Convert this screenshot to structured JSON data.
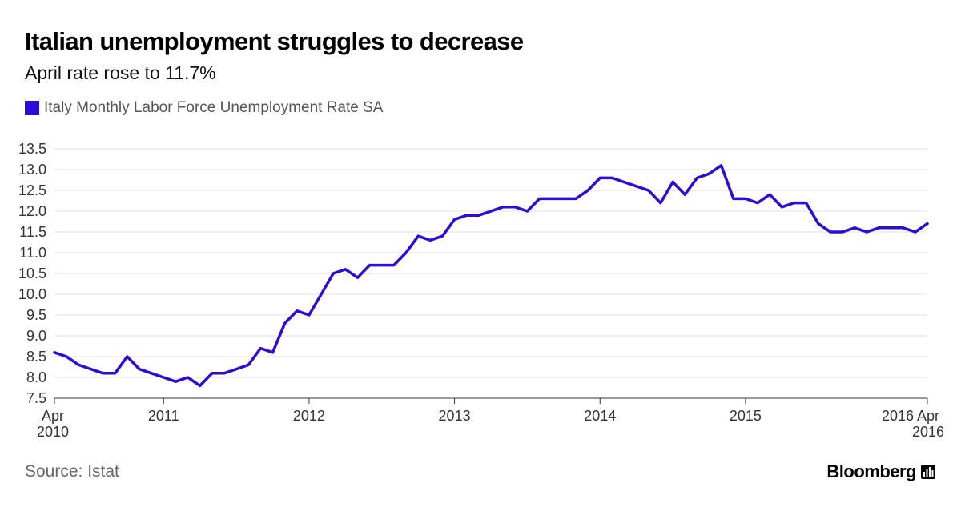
{
  "header": {
    "title": "Italian unemployment struggles to decrease",
    "subtitle": "April rate rose to 11.7%"
  },
  "footer": {
    "source": "Source: Istat",
    "brand": "Bloomberg",
    "brand_icon": "bar-chart-icon"
  },
  "colors": {
    "series": "#2d0cd8",
    "grid": "#e2e2e2",
    "axis": "#333333"
  },
  "chart_data": {
    "type": "line",
    "grid": true,
    "legend_placement": "top-left",
    "ylim": [
      7.5,
      13.5
    ],
    "yticks": [
      7.5,
      8.0,
      8.5,
      9.0,
      9.5,
      10.0,
      10.5,
      11.0,
      11.5,
      12.0,
      12.5,
      13.0,
      13.5
    ],
    "ytick_labels": [
      "7.5",
      "8.0",
      "8.5",
      "9.0",
      "9.5",
      "10.0",
      "10.5",
      "11.0",
      "11.5",
      "12.0",
      "12.5",
      "13.0",
      "13.5"
    ],
    "x_start": "2010-04",
    "x_end": "2016-04",
    "xticks": [
      {
        "date": "2010-04",
        "label": "Apr",
        "label2": "2010",
        "align": "start"
      },
      {
        "date": "2011-01",
        "label": "2011",
        "align": "middle"
      },
      {
        "date": "2012-01",
        "label": "2012",
        "align": "middle"
      },
      {
        "date": "2013-01",
        "label": "2013",
        "align": "middle"
      },
      {
        "date": "2014-01",
        "label": "2014",
        "align": "middle"
      },
      {
        "date": "2015-01",
        "label": "2015",
        "align": "middle"
      },
      {
        "date": "2016-04",
        "label": "2016 Apr",
        "label2": "2016",
        "align": "end"
      }
    ],
    "series": [
      {
        "name": "Italy Monthly Labor Force Unemployment Rate SA",
        "dates": [
          "2010-04",
          "2010-05",
          "2010-06",
          "2010-07",
          "2010-08",
          "2010-09",
          "2010-10",
          "2010-11",
          "2010-12",
          "2011-01",
          "2011-02",
          "2011-03",
          "2011-04",
          "2011-05",
          "2011-06",
          "2011-07",
          "2011-08",
          "2011-09",
          "2011-10",
          "2011-11",
          "2011-12",
          "2012-01",
          "2012-02",
          "2012-03",
          "2012-04",
          "2012-05",
          "2012-06",
          "2012-07",
          "2012-08",
          "2012-09",
          "2012-10",
          "2012-11",
          "2012-12",
          "2013-01",
          "2013-02",
          "2013-03",
          "2013-04",
          "2013-05",
          "2013-06",
          "2013-07",
          "2013-08",
          "2013-09",
          "2013-10",
          "2013-11",
          "2013-12",
          "2014-01",
          "2014-02",
          "2014-03",
          "2014-04",
          "2014-05",
          "2014-06",
          "2014-07",
          "2014-08",
          "2014-09",
          "2014-10",
          "2014-11",
          "2014-12",
          "2015-01",
          "2015-02",
          "2015-03",
          "2015-04",
          "2015-05",
          "2015-06",
          "2015-07",
          "2015-08",
          "2015-09",
          "2015-10",
          "2015-11",
          "2015-12",
          "2016-01",
          "2016-02",
          "2016-03",
          "2016-04"
        ],
        "values": [
          8.6,
          8.5,
          8.3,
          8.2,
          8.1,
          8.1,
          8.5,
          8.2,
          8.1,
          8.0,
          7.9,
          8.0,
          7.8,
          8.1,
          8.1,
          8.2,
          8.3,
          8.7,
          8.6,
          9.3,
          9.6,
          9.5,
          10.0,
          10.5,
          10.6,
          10.4,
          10.7,
          10.7,
          10.7,
          11.0,
          11.4,
          11.3,
          11.4,
          11.8,
          11.9,
          11.9,
          12.0,
          12.1,
          12.1,
          12.0,
          12.3,
          12.3,
          12.3,
          12.3,
          12.5,
          12.8,
          12.8,
          12.7,
          12.6,
          12.5,
          12.2,
          12.7,
          12.4,
          12.8,
          12.9,
          13.1,
          12.3,
          12.3,
          12.2,
          12.4,
          12.1,
          12.2,
          12.2,
          11.7,
          11.5,
          11.5,
          11.6,
          11.5,
          11.6,
          11.6,
          11.6,
          11.5,
          11.7
        ]
      }
    ]
  }
}
